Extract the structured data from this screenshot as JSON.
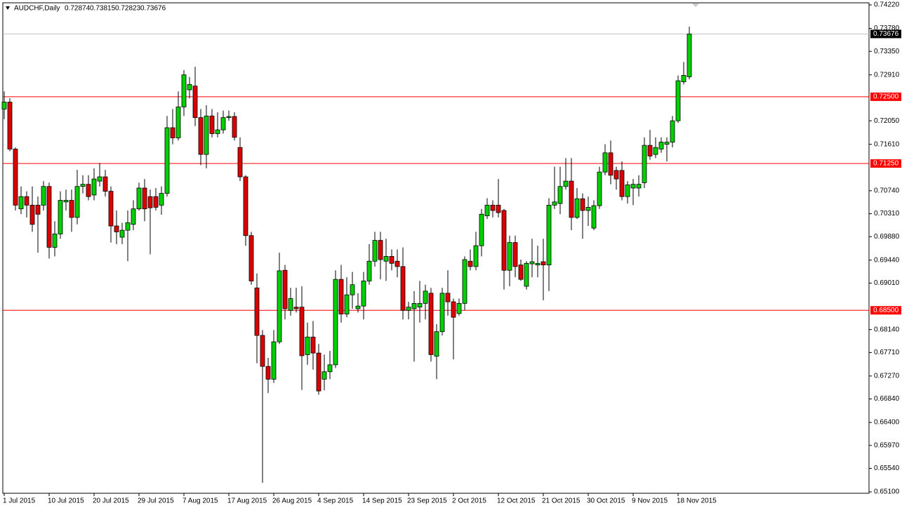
{
  "chart_data": {
    "type": "candlestick",
    "symbol": "AUDCHF,Daily",
    "up_color": "#00d000",
    "down_color": "#dd0000",
    "categories": [
      "1 Jul 2015",
      null,
      null,
      null,
      null,
      null,
      null,
      null,
      "10 Jul 2015",
      null,
      null,
      null,
      null,
      null,
      null,
      null,
      "20 Jul 2015",
      null,
      null,
      null,
      null,
      null,
      null,
      null,
      "29 Jul 2015",
      null,
      null,
      null,
      null,
      null,
      null,
      null,
      "7 Aug 2015",
      null,
      null,
      null,
      null,
      null,
      null,
      null,
      "17 Aug 2015",
      null,
      null,
      null,
      null,
      null,
      null,
      null,
      "26 Aug 2015",
      null,
      null,
      null,
      null,
      null,
      null,
      null,
      "4 Sep 2015",
      null,
      null,
      null,
      null,
      null,
      null,
      null,
      "14 Sep 2015",
      null,
      null,
      null,
      null,
      null,
      null,
      null,
      "23 Sep 2015",
      null,
      null,
      null,
      null,
      null,
      null,
      null,
      "2 Oct 2015",
      null,
      null,
      null,
      null,
      null,
      null,
      null,
      "12 Oct 2015",
      null,
      null,
      null,
      null,
      null,
      null,
      null,
      "21 Oct 2015",
      null,
      null,
      null,
      null,
      null,
      null,
      null,
      "30 Oct 2015",
      null,
      null,
      null,
      null,
      null,
      null,
      null,
      "9 Nov 2015",
      null,
      null,
      null,
      null,
      null,
      null,
      null,
      "18 Nov 2015",
      null,
      null
    ],
    "open": [
      0.7227,
      0.724,
      0.7152,
      0.704,
      0.7063,
      0.7047,
      0.7047,
      0.7047,
      0.7082,
      0.6968,
      0.6993,
      0.7053,
      0.7056,
      0.7024,
      0.7082,
      0.7086,
      0.7066,
      0.7092,
      0.71,
      0.7073,
      0.7008,
      0.6987,
      0.7,
      0.7011,
      0.704,
      0.7079,
      0.7063,
      0.7063,
      0.7047,
      0.7069,
      0.7192,
      0.7173,
      0.7231,
      0.7263,
      0.727,
      0.7211,
      0.7142,
      0.7214,
      0.7181,
      0.7188,
      0.7211,
      0.7213,
      0.7155,
      0.71,
      0.699,
      0.6892,
      0.6803,
      0.6745,
      0.6721,
      0.6791,
      0.6925,
      0.685,
      0.6856,
      0.6856,
      0.6767,
      0.68,
      0.677,
      0.6721,
      0.6735,
      0.6748,
      0.6908,
      0.6843,
      0.6879,
      0.6853,
      0.6858,
      0.6905,
      0.6942,
      0.6981,
      0.6942,
      0.6951,
      0.6942,
      0.6932,
      0.685,
      0.6853,
      0.6856,
      0.6863,
      0.6882,
      0.6764,
      0.681,
      0.6882,
      0.6866,
      0.6844,
      0.6863,
      0.6942,
      0.6932,
      0.6971,
      0.7027,
      0.7047,
      0.7047,
      0.7037,
      0.6925,
      0.6977,
      0.6935,
      0.6895,
      0.6937,
      0.6935,
      0.6941,
      0.6935,
      0.7047,
      0.705,
      0.7082,
      0.7092,
      0.7024,
      0.7059,
      0.7037,
      0.7004,
      0.7046,
      0.7109,
      0.7145,
      0.7112,
      0.7112,
      0.7063,
      0.7079,
      0.7079,
      0.7089,
      0.7159,
      0.7142,
      0.7152,
      0.7161,
      0.7165,
      0.7205,
      0.7278,
      0.72874
    ],
    "high": [
      0.726,
      0.7247,
      0.7155,
      0.7082,
      0.7073,
      0.7082,
      0.7063,
      0.7092,
      0.7089,
      0.7017,
      0.7073,
      0.7076,
      0.7076,
      0.7113,
      0.7103,
      0.7103,
      0.7116,
      0.7126,
      0.7113,
      0.7082,
      0.7037,
      0.7014,
      0.7037,
      0.7056,
      0.7089,
      0.7096,
      0.7076,
      0.7079,
      0.7082,
      0.7214,
      0.7227,
      0.726,
      0.73,
      0.7287,
      0.7306,
      0.7227,
      0.7234,
      0.7227,
      0.7221,
      0.7224,
      0.7224,
      0.7221,
      0.7174,
      0.7103,
      0.6997,
      0.6919,
      0.6813,
      0.6761,
      0.6813,
      0.6958,
      0.6935,
      0.6892,
      0.6892,
      0.6895,
      0.6827,
      0.683,
      0.6787,
      0.6767,
      0.6774,
      0.6925,
      0.6935,
      0.6912,
      0.6922,
      0.6882,
      0.6922,
      0.6974,
      0.6997,
      0.6997,
      0.6984,
      0.6964,
      0.6964,
      0.6968,
      0.6866,
      0.6886,
      0.6905,
      0.6898,
      0.6892,
      0.6824,
      0.6892,
      0.6925,
      0.6872,
      0.6872,
      0.6951,
      0.6964,
      0.6997,
      0.704,
      0.706,
      0.7056,
      0.7096,
      0.704,
      0.699,
      0.699,
      0.6945,
      0.6942,
      0.6984,
      0.6971,
      0.6984,
      0.706,
      0.7119,
      0.7119,
      0.7135,
      0.7135,
      0.7079,
      0.7069,
      0.7063,
      0.7056,
      0.7119,
      0.7161,
      0.7168,
      0.7119,
      0.7129,
      0.7092,
      0.7096,
      0.7103,
      0.7174,
      0.7188,
      0.7174,
      0.7174,
      0.7174,
      0.7214,
      0.729,
      0.7315,
      0.73815
    ],
    "low": [
      0.7208,
      0.7148,
      0.7037,
      0.703,
      0.7024,
      0.6997,
      0.6958,
      0.7037,
      0.6947,
      0.6951,
      0.6984,
      0.7037,
      0.6997,
      0.7011,
      0.7069,
      0.7056,
      0.7056,
      0.7082,
      0.7063,
      0.6977,
      0.6974,
      0.6974,
      0.6942,
      0.7,
      0.7037,
      0.7017,
      0.6955,
      0.7037,
      0.7029,
      0.7063,
      0.7161,
      0.7168,
      0.7214,
      0.7247,
      0.7195,
      0.7122,
      0.7116,
      0.7174,
      0.7174,
      0.7181,
      0.7205,
      0.7168,
      0.7092,
      0.6971,
      0.6898,
      0.6751,
      0.6527,
      0.6695,
      0.6714,
      0.6787,
      0.6833,
      0.684,
      0.6846,
      0.6701,
      0.6748,
      0.6739,
      0.6692,
      0.67,
      0.6721,
      0.6742,
      0.6827,
      0.6837,
      0.6853,
      0.6846,
      0.6833,
      0.6898,
      0.6932,
      0.6908,
      0.6905,
      0.6925,
      0.6912,
      0.6833,
      0.6833,
      0.6754,
      0.6827,
      0.6833,
      0.6754,
      0.6721,
      0.6803,
      0.684,
      0.6758,
      0.684,
      0.685,
      0.6925,
      0.6925,
      0.6951,
      0.7021,
      0.7024,
      0.7024,
      0.6889,
      0.6895,
      0.6912,
      0.6905,
      0.6889,
      0.6912,
      0.6912,
      0.6869,
      0.6886,
      0.704,
      0.703,
      0.7076,
      0.7,
      0.7021,
      0.6984,
      0.7008,
      0.7,
      0.704,
      0.7103,
      0.7086,
      0.7076,
      0.7056,
      0.705,
      0.7047,
      0.7063,
      0.7079,
      0.7132,
      0.7135,
      0.7145,
      0.7129,
      0.7155,
      0.7201,
      0.7273,
      0.72823
    ],
    "close": [
      0.724,
      0.7152,
      0.7047,
      0.7063,
      0.7047,
      0.7011,
      0.703,
      0.7082,
      0.6968,
      0.6993,
      0.7056,
      0.7056,
      0.7024,
      0.7082,
      0.7086,
      0.7063,
      0.7096,
      0.71,
      0.7073,
      0.7008,
      0.6997,
      0.7,
      0.7014,
      0.704,
      0.7079,
      0.704,
      0.7042,
      0.7043,
      0.7069,
      0.7192,
      0.7173,
      0.7231,
      0.7291,
      0.7273,
      0.7211,
      0.7142,
      0.7214,
      0.7181,
      0.7188,
      0.7211,
      0.7213,
      0.7174,
      0.71,
      0.699,
      0.6905,
      0.6803,
      0.6745,
      0.6721,
      0.6791,
      0.6924,
      0.6853,
      0.6872,
      0.6853,
      0.6765,
      0.68,
      0.677,
      0.6699,
      0.6735,
      0.6748,
      0.6908,
      0.6843,
      0.6879,
      0.6898,
      0.6858,
      0.6905,
      0.6942,
      0.6981,
      0.6945,
      0.6951,
      0.6938,
      0.6932,
      0.685,
      0.6856,
      0.6863,
      0.6863,
      0.6886,
      0.6767,
      0.681,
      0.6882,
      0.6866,
      0.6837,
      0.6863,
      0.6945,
      0.6932,
      0.6971,
      0.703,
      0.7047,
      0.7037,
      0.7033,
      0.6925,
      0.6977,
      0.6932,
      0.6908,
      0.6938,
      0.6941,
      0.6938,
      0.6935,
      0.7047,
      0.7053,
      0.7082,
      0.7092,
      0.7024,
      0.7059,
      0.7037,
      0.7043,
      0.7046,
      0.7109,
      0.7145,
      0.7103,
      0.7096,
      0.7063,
      0.7085,
      0.7086,
      0.7086,
      0.7159,
      0.7139,
      0.7155,
      0.7165,
      0.7165,
      0.7205,
      0.728,
      0.729,
      0.73676
    ],
    "ylim": [
      0.651,
      0.7422
    ],
    "yticks": [
      {
        "value": 0.7422,
        "label": "0.74220"
      },
      {
        "value": 0.7378,
        "label": "0.73780"
      },
      {
        "value": 0.7335,
        "label": "0.73350"
      },
      {
        "value": 0.7291,
        "label": "0.72910"
      },
      {
        "value": 0.7205,
        "label": "0.72050"
      },
      {
        "value": 0.7161,
        "label": "0.71610"
      },
      {
        "value": 0.7074,
        "label": "0.70740"
      },
      {
        "value": 0.7031,
        "label": "0.70310"
      },
      {
        "value": 0.6988,
        "label": "0.69880"
      },
      {
        "value": 0.6944,
        "label": "0.69440"
      },
      {
        "value": 0.6901,
        "label": "0.69010"
      },
      {
        "value": 0.6814,
        "label": "0.68140"
      },
      {
        "value": 0.6771,
        "label": "0.67710"
      },
      {
        "value": 0.6727,
        "label": "0.67270"
      },
      {
        "value": 0.6684,
        "label": "0.66840"
      },
      {
        "value": 0.664,
        "label": "0.66400"
      },
      {
        "value": 0.6597,
        "label": "0.65970"
      },
      {
        "value": 0.6554,
        "label": "0.65540"
      },
      {
        "value": 0.651,
        "label": "0.65100"
      }
    ],
    "hlines": [
      {
        "value": 0.725,
        "label": "0.72500",
        "color": "#ff0000"
      },
      {
        "value": 0.7125,
        "label": "0.71250",
        "color": "#ff0000"
      },
      {
        "value": 0.685,
        "label": "0.68500",
        "color": "#ff0000"
      }
    ],
    "price_line": {
      "value": 0.73676,
      "color": "#c0c0c0"
    }
  }
}
